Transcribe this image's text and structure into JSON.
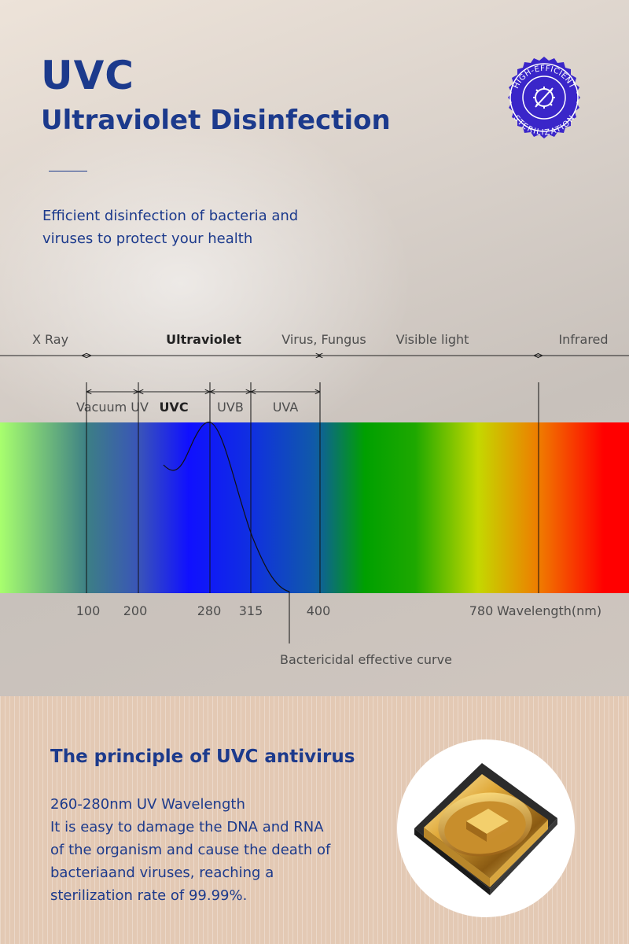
{
  "header": {
    "title": "UVC",
    "subtitle": "Ultraviolet Disinfection",
    "tagline": "Efficient disinfection of bacteria and viruses to protect your health"
  },
  "badge": {
    "text_top": "HIGH-EFFICIENT",
    "text_bottom": "STERILIZATION",
    "color": "#3a26c9",
    "icon": "virus-cross-icon"
  },
  "spectrum": {
    "regions": [
      "X Ray",
      "Ultraviolet",
      "Virus, Fungus",
      "Visible light",
      "Infrared"
    ],
    "uv_bands": [
      "Vacuum UV",
      "UVC",
      "UVB",
      "UVA"
    ],
    "wavelength_ticks": [
      "100",
      "200",
      "280",
      "315",
      "400",
      "780"
    ],
    "axis_unit_label": "Wavelength(nm)",
    "curve_label": "Bactericidal effective curve",
    "colors": {
      "green_light": "#a8ff6e",
      "teal": "#3c7e86",
      "blue": "#1010ff",
      "green": "#00a000",
      "yellow": "#d4d800",
      "orange": "#f07800",
      "red": "#ff0000"
    }
  },
  "principle": {
    "title": "The principle of UVC antivirus",
    "lines": [
      "260-280nm UV Wavelength",
      "It is easy to damage the DNA and RNA",
      "of the organism and cause the death of",
      "bacteriaand viruses, reaching a",
      "sterilization rate of 99.99%."
    ]
  },
  "theme": {
    "text_blue": "#1c3a8c",
    "bottom_bg": "#e3c9b4"
  }
}
